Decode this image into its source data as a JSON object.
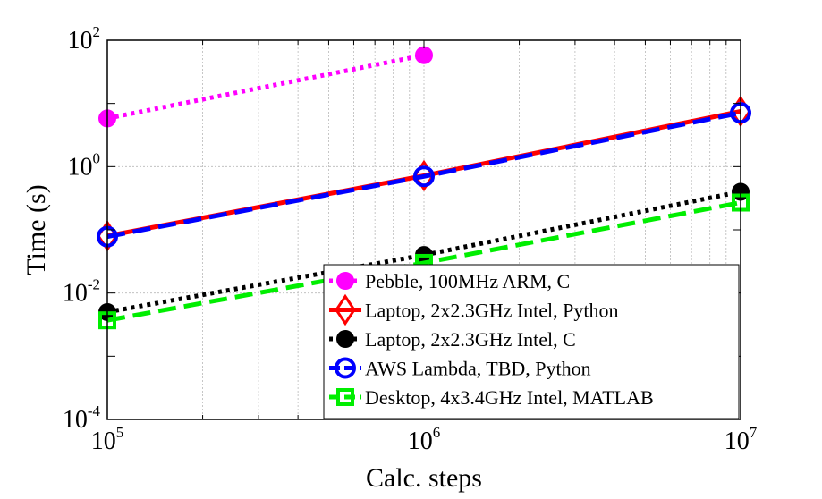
{
  "chart_data": {
    "type": "line",
    "xlabel": "Calc. steps",
    "ylabel": "Time (s)",
    "x_scale": "log",
    "y_scale": "log",
    "xlim": [
      100000,
      10000000
    ],
    "ylim": [
      0.0001,
      100
    ],
    "grid": true,
    "legend_position": "bottom-right",
    "x_ticks": [
      {
        "base": "10",
        "exp": "5",
        "value": 100000
      },
      {
        "base": "10",
        "exp": "6",
        "value": 1000000
      },
      {
        "base": "10",
        "exp": "7",
        "value": 10000000
      }
    ],
    "y_ticks": [
      {
        "base": "10",
        "exp": "2",
        "value": 100
      },
      {
        "base": "10",
        "exp": "0",
        "value": 1
      },
      {
        "base": "10",
        "exp": "-2",
        "value": 0.01
      },
      {
        "base": "10",
        "exp": "-4",
        "value": 0.0001
      }
    ],
    "series": [
      {
        "name": "Pebble, 100MHz ARM, C",
        "color": "#ff00ff",
        "line_style": "dotted",
        "marker": "filled-circle",
        "x": [
          100000,
          1000000
        ],
        "y": [
          5.8,
          58
        ]
      },
      {
        "name": "Laptop, 2x2.3GHz Intel, Python",
        "color": "#ff0000",
        "line_style": "solid",
        "marker": "diamond",
        "x": [
          100000,
          1000000,
          10000000
        ],
        "y": [
          0.08,
          0.72,
          7.5
        ]
      },
      {
        "name": "Laptop, 2x2.3GHz Intel, C",
        "color": "#000000",
        "line_style": "dotted",
        "marker": "filled-circle",
        "x": [
          100000,
          1000000,
          10000000
        ],
        "y": [
          0.005,
          0.04,
          0.4
        ]
      },
      {
        "name": "AWS Lambda, TBD, Python",
        "color": "#0000ff",
        "line_style": "dashed",
        "marker": "circle",
        "x": [
          100000,
          1000000,
          10000000
        ],
        "y": [
          0.078,
          0.7,
          7.1
        ]
      },
      {
        "name": "Desktop, 4x3.4GHz Intel, MATLAB",
        "color": "#00ee00",
        "line_style": "dashed",
        "marker": "square",
        "x": [
          100000,
          1000000,
          10000000
        ],
        "y": [
          0.0037,
          0.03,
          0.27
        ]
      }
    ]
  }
}
